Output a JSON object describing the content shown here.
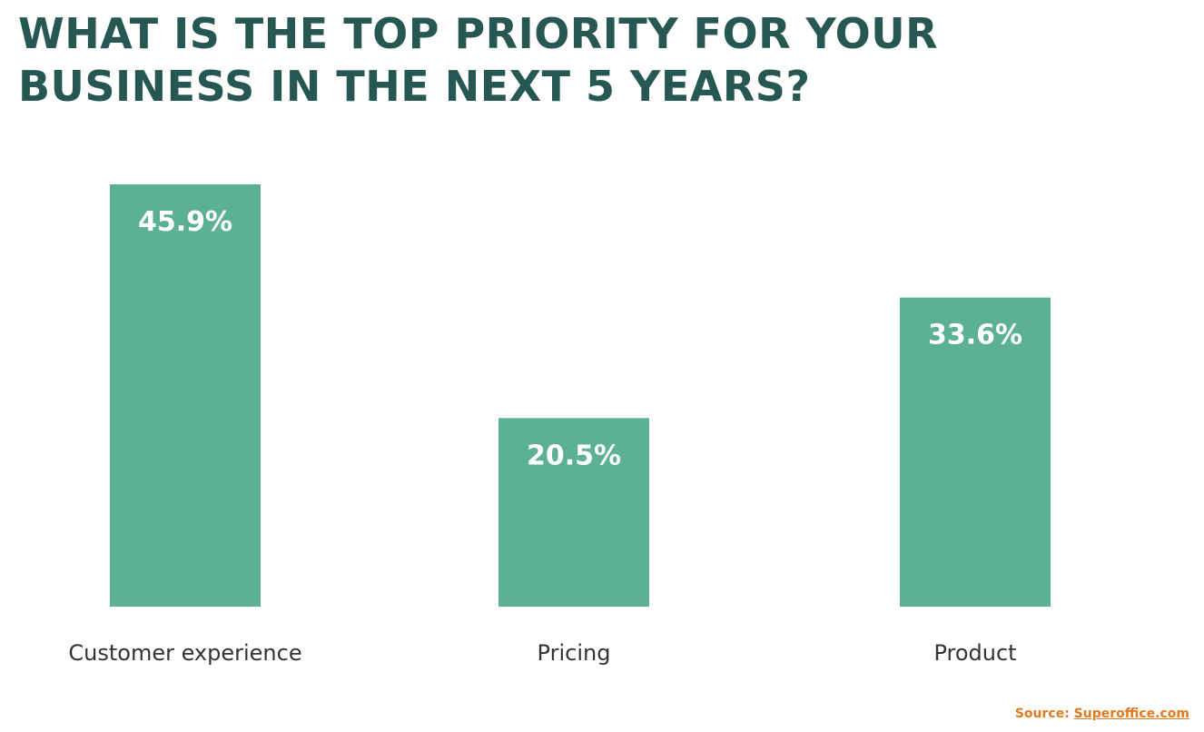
{
  "chart_data": {
    "type": "bar",
    "title_lines": [
      "WHAT IS THE TOP PRIORITY FOR YOUR",
      "BUSINESS IN THE NEXT 5 YEARS?"
    ],
    "categories": [
      "Customer experience",
      "Pricing",
      "Product"
    ],
    "values": [
      45.9,
      20.5,
      33.6
    ],
    "value_labels": [
      "45.9%",
      "20.5%",
      "33.6%"
    ],
    "unit": "%",
    "xlabel": "",
    "ylabel": "",
    "ylim": [
      0,
      45.9
    ],
    "grid": false,
    "bar_color": "#5bb095",
    "title_color": "#265752"
  },
  "source": {
    "label": "Source:",
    "site": "Superoffice.com"
  }
}
